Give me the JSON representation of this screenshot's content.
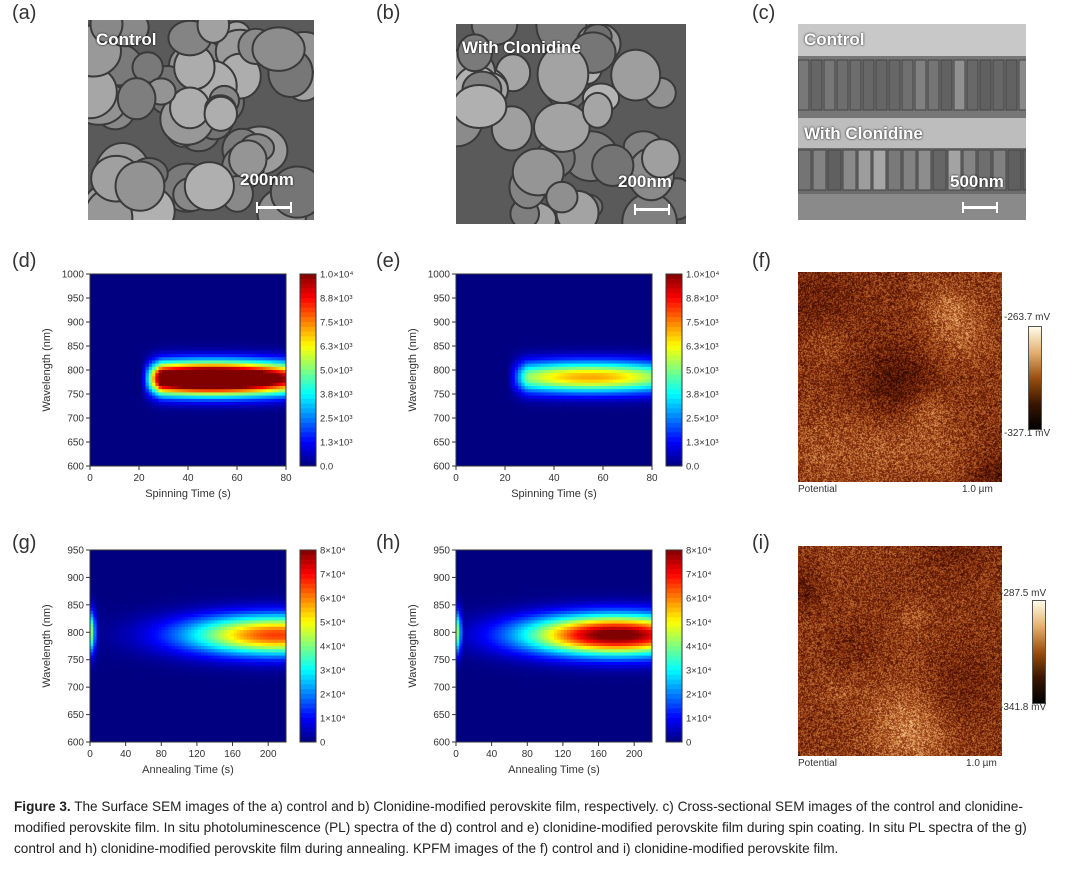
{
  "panels": {
    "a": {
      "label": "(a)",
      "overlay": "Control",
      "scale": "200nm"
    },
    "b": {
      "label": "(b)",
      "overlay": "With Clonidine",
      "scale": "200nm"
    },
    "c": {
      "label": "(c)",
      "overlay_top": "Control",
      "overlay_bottom": "With Clonidine",
      "scale": "500nm"
    },
    "d": {
      "label": "(d)"
    },
    "e": {
      "label": "(e)"
    },
    "f": {
      "label": "(f)",
      "max": "-263.7 mV",
      "min": "-327.1 mV",
      "bottom_left": "Potential",
      "bottom_right": "1.0 µm"
    },
    "g": {
      "label": "(g)"
    },
    "h": {
      "label": "(h)"
    },
    "i": {
      "label": "(i)",
      "max": "-287.5 mV",
      "min": "-341.8 mV",
      "bottom_left": "Potential",
      "bottom_right": "1.0 µm"
    }
  },
  "chart_data": [
    {
      "id": "d",
      "type": "heatmap",
      "xlabel": "Spinning Time (s)",
      "ylabel": "Wavelength (nm)",
      "xlim": [
        0,
        80
      ],
      "ylim": [
        600,
        1000
      ],
      "xticks": [
        "0",
        "20",
        "40",
        "60",
        "80"
      ],
      "yticks": [
        "600",
        "650",
        "700",
        "750",
        "800",
        "850",
        "900",
        "950",
        "1000"
      ],
      "colorbar": [
        "0.0",
        "1.3×10³",
        "2.5×10³",
        "3.8×10³",
        "5.0×10³",
        "6.3×10³",
        "7.5×10³",
        "8.8×10³",
        "1.0×10⁴"
      ],
      "peak": {
        "x_start": 21,
        "x_center": 50,
        "y_center": 782,
        "intensity": 1.0
      }
    },
    {
      "id": "e",
      "type": "heatmap",
      "xlabel": "Spinning Time (s)",
      "ylabel": "Wavelength (nm)",
      "xlim": [
        0,
        80
      ],
      "ylim": [
        600,
        1000
      ],
      "xticks": [
        "0",
        "20",
        "40",
        "60",
        "80"
      ],
      "yticks": [
        "600",
        "650",
        "700",
        "750",
        "800",
        "850",
        "900",
        "950",
        "1000"
      ],
      "colorbar": [
        "0.0",
        "1.3×10³",
        "2.5×10³",
        "3.8×10³",
        "5.0×10³",
        "6.3×10³",
        "7.5×10³",
        "8.8×10³",
        "1.0×10⁴"
      ],
      "peak": {
        "x_start": 21,
        "x_center": 55,
        "y_center": 785,
        "intensity": 0.62
      }
    },
    {
      "id": "g",
      "type": "heatmap",
      "xlabel": "Annealing Time (s)",
      "ylabel": "Wavelength (nm)",
      "xlim": [
        0,
        220
      ],
      "ylim": [
        600,
        950
      ],
      "xticks": [
        "0",
        "40",
        "80",
        "120",
        "160",
        "200"
      ],
      "yticks": [
        "600",
        "650",
        "700",
        "750",
        "800",
        "850",
        "900",
        "950"
      ],
      "colorbar": [
        "0",
        "1×10⁴",
        "2×10⁴",
        "3×10⁴",
        "4×10⁴",
        "5×10⁴",
        "6×10⁴",
        "7×10⁴",
        "8×10⁴"
      ],
      "peak": {
        "x_start": 0,
        "x_center": 210,
        "y_center": 795,
        "intensity": 0.78
      }
    },
    {
      "id": "h",
      "type": "heatmap",
      "xlabel": "Annealing Time (s)",
      "ylabel": "Wavelength (nm)",
      "xlim": [
        0,
        220
      ],
      "ylim": [
        600,
        950
      ],
      "xticks": [
        "0",
        "40",
        "80",
        "120",
        "160",
        "200"
      ],
      "yticks": [
        "600",
        "650",
        "700",
        "750",
        "800",
        "850",
        "900",
        "950"
      ],
      "colorbar": [
        "0",
        "1×10⁴",
        "2×10⁴",
        "3×10⁴",
        "4×10⁴",
        "5×10⁴",
        "6×10⁴",
        "7×10⁴",
        "8×10⁴"
      ],
      "peak": {
        "x_start": 0,
        "x_center": 180,
        "y_center": 795,
        "intensity": 1.0
      }
    }
  ],
  "caption": {
    "label": "Figure 3.",
    "text": "The Surface SEM images of the a) control and b) Clonidine-modified perovskite film, respectively. c) Cross-sectional SEM images of the control and clonidine-modified perovskite film. In situ photoluminescence (PL) spectra of the d) control and e) clonidine-modified perovskite film during spin coating. In situ PL spectra of the g) control and h) clonidine-modified perovskite film during annealing. KPFM images of the f) control and i) clonidine-modified perovskite film."
  }
}
